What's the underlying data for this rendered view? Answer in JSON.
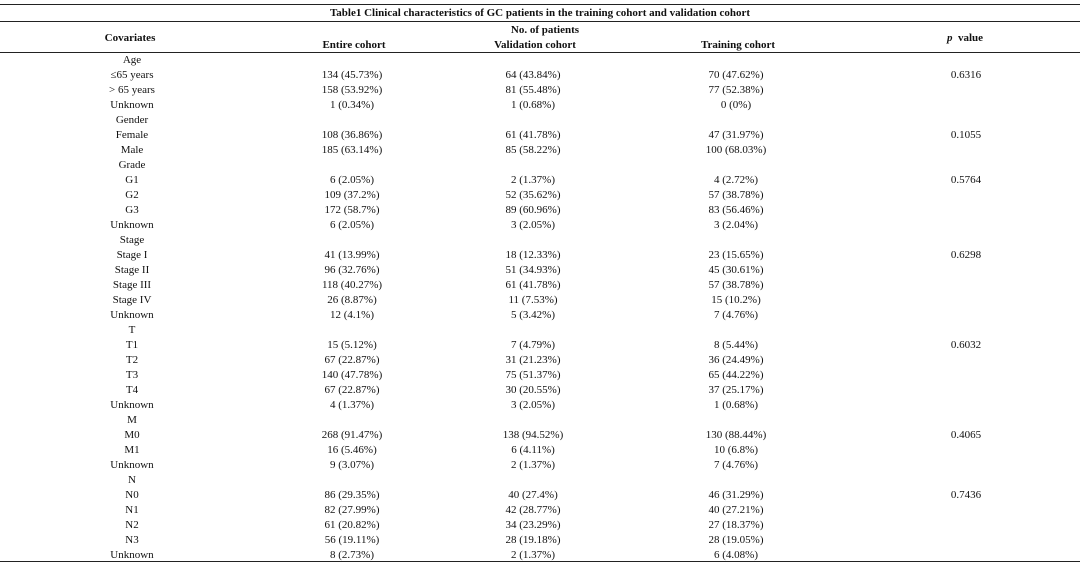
{
  "table": {
    "title": "Table1 Clinical characteristics of GC patients in the training cohort and validation cohort",
    "header": {
      "covariates": "Covariates",
      "group": "No. of patients",
      "entire": "Entire cohort",
      "validation": "Validation cohort",
      "training": "Training cohort",
      "p_italic": "p",
      "p_rest": "value"
    },
    "rows": [
      [
        "Age"
      ],
      [
        "≤65 years",
        "134 (45.73%)",
        "64 (43.84%)",
        "70 (47.62%)",
        "0.6316"
      ],
      [
        "> 65 years",
        "158 (53.92%)",
        "81 (55.48%)",
        "77 (52.38%)"
      ],
      [
        "Unknown",
        "1 (0.34%)",
        "1 (0.68%)",
        "0 (0%)"
      ],
      [
        "Gender"
      ],
      [
        "Female",
        "108 (36.86%)",
        "61 (41.78%)",
        "47 (31.97%)",
        "0.1055"
      ],
      [
        "Male",
        "185 (63.14%)",
        "85 (58.22%)",
        "100 (68.03%)"
      ],
      [
        "Grade"
      ],
      [
        "G1",
        "6 (2.05%)",
        "2 (1.37%)",
        "4 (2.72%)",
        "0.5764"
      ],
      [
        "G2",
        "109 (37.2%)",
        "52 (35.62%)",
        "57 (38.78%)"
      ],
      [
        "G3",
        "172 (58.7%)",
        "89 (60.96%)",
        "83 (56.46%)"
      ],
      [
        "Unknown",
        "6 (2.05%)",
        "3 (2.05%)",
        "3 (2.04%)"
      ],
      [
        "Stage"
      ],
      [
        "Stage I",
        "41 (13.99%)",
        "18 (12.33%)",
        "23 (15.65%)",
        "0.6298"
      ],
      [
        "Stage II",
        "96 (32.76%)",
        "51 (34.93%)",
        "45 (30.61%)"
      ],
      [
        "Stage III",
        "118 (40.27%)",
        "61 (41.78%)",
        "57 (38.78%)"
      ],
      [
        "Stage IV",
        "26 (8.87%)",
        "11 (7.53%)",
        "15 (10.2%)"
      ],
      [
        "Unknown",
        "12 (4.1%)",
        "5 (3.42%)",
        "7 (4.76%)"
      ],
      [
        "T"
      ],
      [
        "T1",
        "15 (5.12%)",
        "7 (4.79%)",
        "8 (5.44%)",
        "0.6032"
      ],
      [
        "T2",
        "67 (22.87%)",
        "31 (21.23%)",
        "36 (24.49%)"
      ],
      [
        "T3",
        "140 (47.78%)",
        "75 (51.37%)",
        "65 (44.22%)"
      ],
      [
        "T4",
        "67 (22.87%)",
        "30 (20.55%)",
        "37 (25.17%)"
      ],
      [
        "Unknown",
        "4 (1.37%)",
        "3 (2.05%)",
        "1 (0.68%)"
      ],
      [
        "M"
      ],
      [
        "M0",
        "268 (91.47%)",
        "138 (94.52%)",
        "130 (88.44%)",
        "0.4065"
      ],
      [
        "M1",
        "16 (5.46%)",
        "6 (4.11%)",
        "10 (6.8%)"
      ],
      [
        "Unknown",
        "9 (3.07%)",
        "2 (1.37%)",
        "7 (4.76%)"
      ],
      [
        "N"
      ],
      [
        "N0",
        "86 (29.35%)",
        "40 (27.4%)",
        "46 (31.29%)",
        "0.7436"
      ],
      [
        "N1",
        "82 (27.99%)",
        "42 (28.77%)",
        "40 (27.21%)"
      ],
      [
        "N2",
        "61 (20.82%)",
        "34 (23.29%)",
        "27 (18.37%)"
      ],
      [
        "N3",
        "56 (19.11%)",
        "28 (19.18%)",
        "28 (19.05%)"
      ],
      [
        "Unknown",
        "8 (2.73%)",
        "2 (1.37%)",
        "6 (4.08%)"
      ]
    ]
  }
}
